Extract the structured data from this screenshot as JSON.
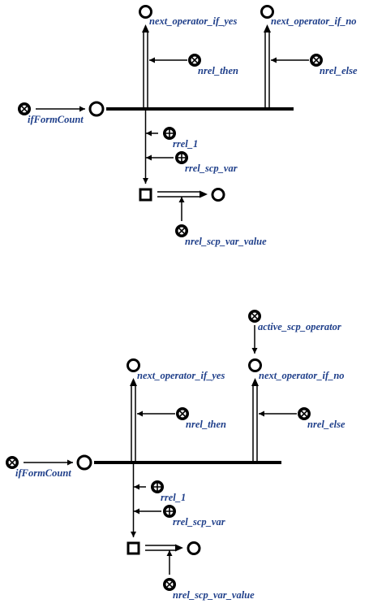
{
  "colors": {
    "ink": "#000000",
    "label": "#1f3f8a",
    "background": "#ffffff"
  },
  "icons": {
    "class_node": "circled-x-icon",
    "relation_node": "circled-plus-icon",
    "variable_node": "hollow-circle-icon",
    "connector": "hollow-square-icon"
  },
  "diagrams": [
    {
      "labels": {
        "yes": "next_operator_if_yes",
        "no": "next_operator_if_no",
        "then": "nrel_then",
        "else": "nrel_else",
        "operator": "ifFormCount",
        "rrel1": "rrel_1",
        "scp_var": "rrel_scp_var",
        "var_value": "nrel_scp_var_value"
      }
    },
    {
      "labels": {
        "active": "active_scp_operator",
        "yes": "next_operator_if_yes",
        "no": "next_operator_if_no",
        "then": "nrel_then",
        "else": "nrel_else",
        "operator": "ifFormCount",
        "rrel1": "rrel_1",
        "scp_var": "rrel_scp_var",
        "var_value": "nrel_scp_var_value"
      }
    }
  ]
}
